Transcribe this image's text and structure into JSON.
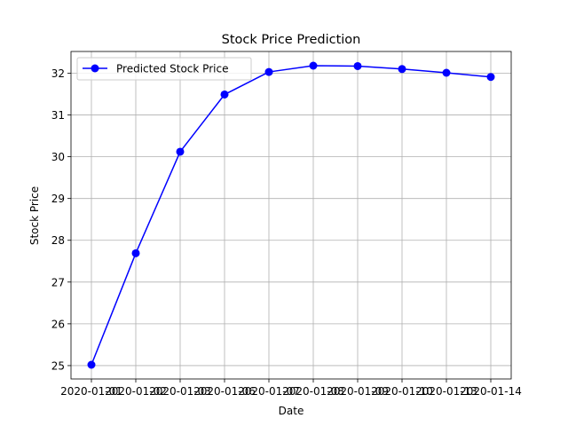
{
  "chart_data": {
    "type": "line",
    "title": "Stock Price Prediction",
    "xlabel": "Date",
    "ylabel": "Stock Price",
    "x": [
      "2020-01-01",
      "2020-01-02",
      "2020-01-03",
      "2020-01-06",
      "2020-01-07",
      "2020-01-08",
      "2020-01-09",
      "2020-01-10",
      "2020-01-13",
      "2020-01-14"
    ],
    "x_tick_labels": [
      "2020-01-01",
      "2020-01-02",
      "2020-01-03",
      "2020-01-06",
      "2020-01-07",
      "2020-01-08",
      "2020-01-09",
      "2020-01-10",
      "2020-01-13",
      "2020-01-14"
    ],
    "y_ticks": [
      25,
      26,
      27,
      28,
      29,
      30,
      31,
      32
    ],
    "ylim": [
      24.68,
      32.52
    ],
    "series": [
      {
        "name": "Predicted Stock Price",
        "color": "#0000ff",
        "marker": "circle",
        "values": [
          25.02,
          27.69,
          30.12,
          31.49,
          32.03,
          32.18,
          32.17,
          32.1,
          32.01,
          31.91
        ]
      }
    ],
    "grid": true,
    "legend": "top-left"
  }
}
